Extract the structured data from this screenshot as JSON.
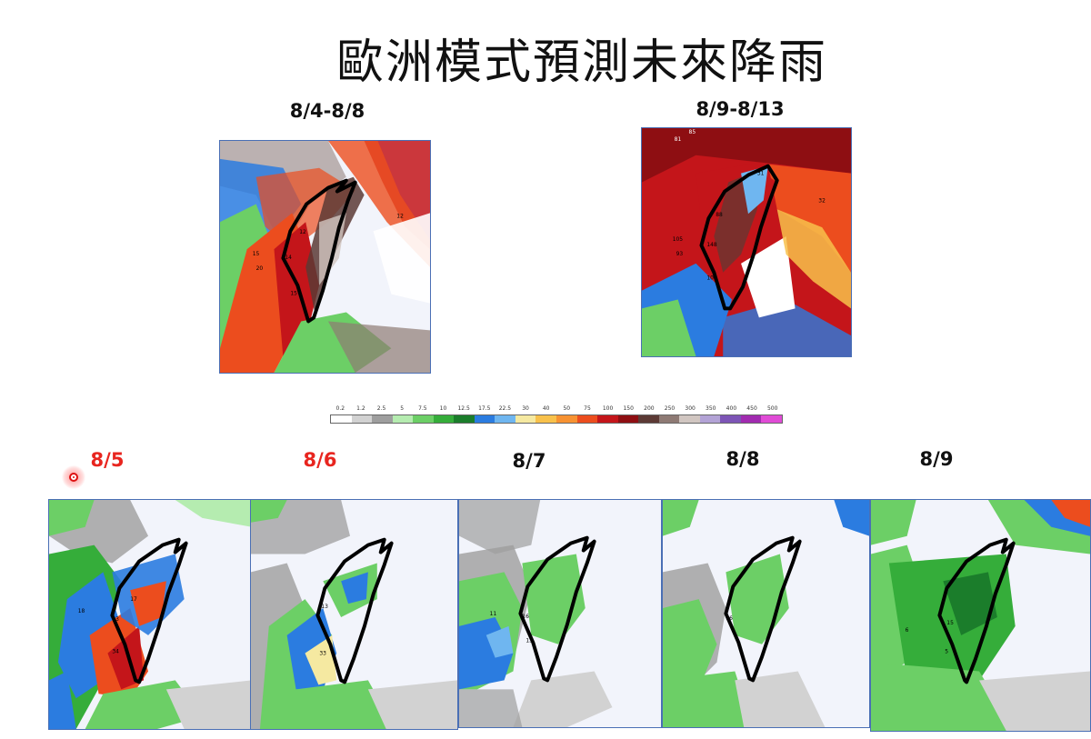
{
  "title": "歐洲模式預測未來降雨",
  "period_labels": [
    "8/4-8/8",
    "8/9-8/13"
  ],
  "daily_labels": [
    "8/5",
    "8/6",
    "8/7",
    "8/8",
    "8/9"
  ],
  "colors": {
    "highlight_label": "#e8251f",
    "default_label": "#111111",
    "map_border": "#4a6fb5"
  },
  "colorbar": {
    "ticks": [
      "0.2",
      "1.2",
      "2.5",
      "5",
      "7.5",
      "10",
      "12.5",
      "17.5",
      "22.5",
      "30",
      "40",
      "50",
      "75",
      "100",
      "150",
      "200",
      "250",
      "300",
      "350",
      "400",
      "450",
      "500"
    ],
    "colors": [
      "#ffffff",
      "#d2d2d2",
      "#9e9e9e",
      "#b5ecb0",
      "#6ccf66",
      "#35ad3a",
      "#1b7d2b",
      "#2b7ce0",
      "#6fb6f0",
      "#f5e9a1",
      "#f8c14b",
      "#f79232",
      "#ec4d1e",
      "#c4151a",
      "#8e0e12",
      "#5c3a35",
      "#8e7a74",
      "#d1c6c1",
      "#b3a3d6",
      "#7d55b6",
      "#a12bb0",
      "#e04bd6"
    ]
  },
  "period_maps": [
    {
      "name": "8/4-8/8",
      "numbers": [
        "12",
        "15",
        "20",
        "14",
        "15",
        "12"
      ]
    },
    {
      "name": "8/9-8/13",
      "numbers": [
        "81",
        "85",
        "88",
        "105",
        "93",
        "148",
        "100",
        "32",
        "31"
      ]
    }
  ],
  "daily_maps": [
    {
      "name": "8/5",
      "numbers": [
        "17",
        "13",
        "34",
        "18"
      ]
    },
    {
      "name": "8/6",
      "numbers": [
        "13",
        "33"
      ]
    },
    {
      "name": "8/7",
      "numbers": [
        "11",
        "16",
        "13"
      ]
    },
    {
      "name": "8/8",
      "numbers": [
        "16"
      ]
    },
    {
      "name": "8/9",
      "numbers": [
        "6",
        "15",
        "5"
      ]
    }
  ]
}
